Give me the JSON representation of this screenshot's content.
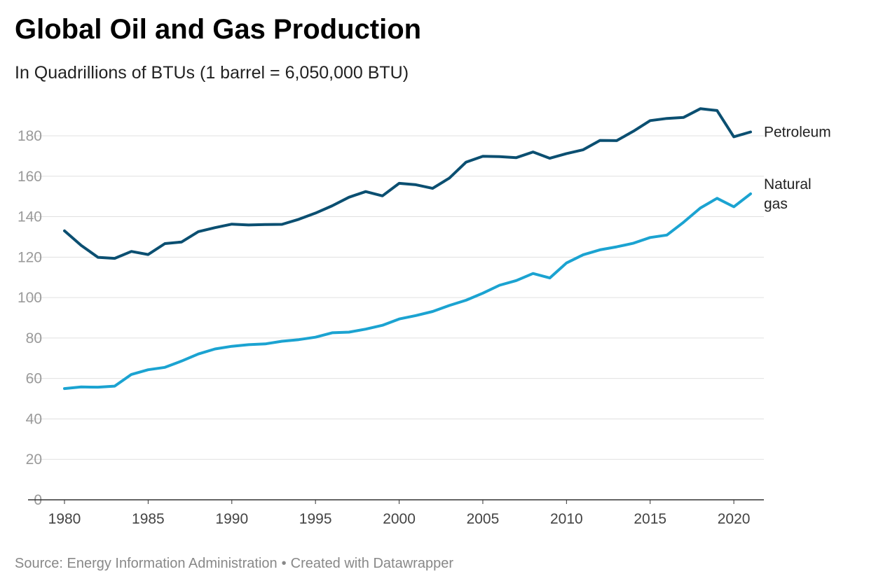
{
  "header": {
    "title": "Global Oil and Gas Production",
    "subtitle": "In Quadrillions of BTUs (1 barrel = 6,050,000 BTU)"
  },
  "footer": {
    "source": "Source: Energy Information Administration",
    "separator": "•",
    "credit": "Created with Datawrapper"
  },
  "chart_data": {
    "type": "line",
    "title": "Global Oil and Gas Production",
    "subtitle": "In Quadrillions of BTUs (1 barrel = 6,050,000 BTU)",
    "xlabel": "",
    "ylabel": "",
    "x": [
      1980,
      1981,
      1982,
      1983,
      1984,
      1985,
      1986,
      1987,
      1988,
      1989,
      1990,
      1991,
      1992,
      1993,
      1994,
      1995,
      1996,
      1997,
      1998,
      1999,
      2000,
      2001,
      2002,
      2003,
      2004,
      2005,
      2006,
      2007,
      2008,
      2009,
      2010,
      2011,
      2012,
      2013,
      2014,
      2015,
      2016,
      2017,
      2018,
      2019,
      2020,
      2021
    ],
    "xticks": [
      "1980",
      "1985",
      "1990",
      "1995",
      "2000",
      "2005",
      "2010",
      "2015",
      "2020"
    ],
    "yticks": [
      "0",
      "20",
      "40",
      "60",
      "80",
      "100",
      "120",
      "140",
      "160",
      "180"
    ],
    "xlim": [
      1980,
      2021
    ],
    "ylim": [
      0,
      195
    ],
    "grid": true,
    "legend": "inline labels at line ends",
    "series": [
      {
        "name": "Petroleum",
        "label_lines": [
          "Petroleum"
        ],
        "color": "#0b4f71",
        "values": [
          133,
          125.8,
          119.9,
          119.4,
          122.8,
          121.3,
          126.7,
          127.5,
          132.6,
          134.6,
          136.3,
          135.9,
          136.1,
          136.2,
          138.7,
          141.8,
          145.4,
          149.6,
          152.4,
          150.3,
          156.5,
          155.8,
          154,
          159.1,
          167,
          169.9,
          169.7,
          169.2,
          172,
          168.9,
          171.2,
          173.1,
          177.7,
          177.6,
          182.3,
          187.5,
          188.6,
          189.1,
          193.4,
          192.5,
          179.5,
          181.9
        ]
      },
      {
        "name": "Natural gas",
        "label_lines": [
          "Natural",
          "gas"
        ],
        "color": "#1ba3d1",
        "values": [
          55,
          55.8,
          55.7,
          56.2,
          62,
          64.3,
          65.5,
          68.6,
          72.1,
          74.6,
          75.9,
          76.7,
          77.1,
          78.4,
          79.2,
          80.4,
          82.6,
          82.9,
          84.4,
          86.3,
          89.4,
          91.1,
          93.1,
          96.1,
          98.7,
          102.2,
          106.1,
          108.4,
          111.9,
          109.7,
          117.1,
          121.2,
          123.6,
          125.1,
          126.9,
          129.7,
          130.9,
          137.3,
          144.3,
          149.1,
          144.9,
          151.3
        ]
      }
    ]
  }
}
